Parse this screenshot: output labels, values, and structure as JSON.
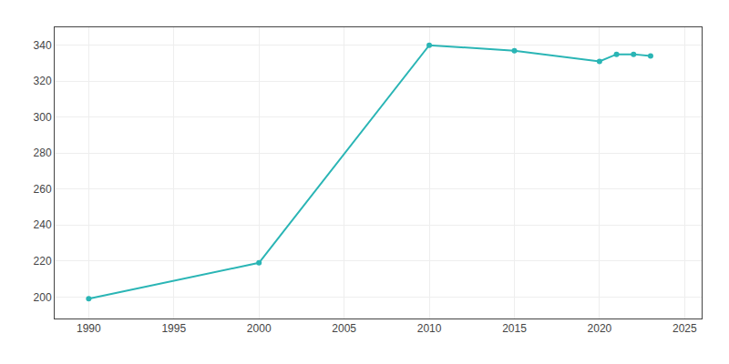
{
  "chart_data": {
    "type": "line",
    "x": [
      1990,
      2000,
      2010,
      2015,
      2020,
      2021,
      2022,
      2023
    ],
    "values": [
      199,
      219,
      340,
      337,
      331,
      335,
      335,
      334
    ],
    "color": "#2ab5b5",
    "marker": "circle",
    "xlim": [
      1988,
      2026
    ],
    "ylim": [
      188,
      350
    ],
    "xticks": [
      1990,
      1995,
      2000,
      2005,
      2010,
      2015,
      2020,
      2025
    ],
    "yticks": [
      200,
      220,
      240,
      260,
      280,
      300,
      320,
      340
    ],
    "grid": true
  }
}
